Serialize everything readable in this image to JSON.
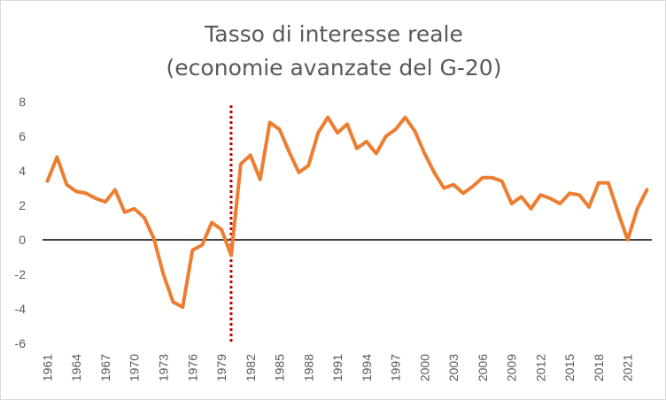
{
  "chart_data": {
    "type": "line",
    "title": "Tasso di interesse reale",
    "subtitle": "(economie avanzate del G-20)",
    "xlabel": "",
    "ylabel": "",
    "ylim": [
      -6,
      8
    ],
    "yticks": [
      "8",
      "6",
      "4",
      "2",
      "0",
      "-2",
      "-4",
      "-6"
    ],
    "xticks": [
      "1961",
      "1964",
      "1967",
      "1970",
      "1973",
      "1976",
      "1979",
      "1982",
      "1985",
      "1988",
      "1991",
      "1994",
      "1997",
      "2000",
      "2003",
      "2006",
      "2009",
      "2012",
      "2015",
      "2018",
      "2021"
    ],
    "grid": false,
    "legend": "none",
    "vline_x": 1980,
    "colors": {
      "line": "#ED7D31",
      "vline": "#C00000",
      "zero_line": "#000000",
      "text": "#595959"
    },
    "x": [
      1961,
      1962,
      1963,
      1964,
      1965,
      1966,
      1967,
      1968,
      1969,
      1970,
      1971,
      1972,
      1973,
      1974,
      1975,
      1976,
      1977,
      1978,
      1979,
      1980,
      1981,
      1982,
      1983,
      1984,
      1985,
      1986,
      1987,
      1988,
      1989,
      1990,
      1991,
      1992,
      1993,
      1994,
      1995,
      1996,
      1997,
      1998,
      1999,
      2000,
      2001,
      2002,
      2003,
      2004,
      2005,
      2006,
      2007,
      2008,
      2009,
      2010,
      2011,
      2012,
      2013,
      2014,
      2015,
      2016,
      2017,
      2018,
      2019,
      2020,
      2021,
      2022,
      2023
    ],
    "series": [
      {
        "values": [
          3.4,
          4.8,
          3.2,
          2.8,
          2.7,
          2.4,
          2.2,
          2.9,
          1.6,
          1.8,
          1.3,
          0.1,
          -2.0,
          -3.6,
          -3.9,
          -0.6,
          -0.3,
          1.0,
          0.6,
          -0.9,
          4.4,
          4.9,
          3.5,
          6.8,
          6.4,
          5.1,
          3.9,
          4.3,
          6.2,
          7.1,
          6.2,
          6.7,
          5.3,
          5.7,
          5.0,
          6.0,
          6.4,
          7.1,
          6.3,
          5.0,
          3.9,
          3.0,
          3.2,
          2.7,
          3.1,
          3.6,
          3.6,
          3.4,
          2.1,
          2.5,
          1.8,
          2.6,
          2.4,
          2.1,
          2.7,
          2.6,
          1.9,
          3.3,
          3.3,
          1.6,
          0.0,
          1.8,
          2.9
        ]
      }
    ]
  }
}
